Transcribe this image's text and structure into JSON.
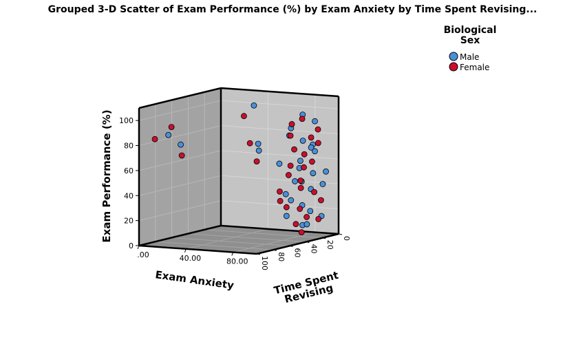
{
  "chart_data": {
    "type": "scatter3d",
    "title": "Grouped 3-D Scatter of Exam Performance (%) by Exam Anxiety by Time Spent Revising...",
    "x_label": "Exam Anxiety",
    "y_label": "Exam Performance (%)",
    "z_label": [
      "Time Spent",
      "Revising"
    ],
    "legend_title": [
      "Biological",
      "Sex"
    ],
    "xlim": [
      0,
      100
    ],
    "xticks": [
      {
        "value": 0,
        "label": ".00"
      },
      {
        "value": 40,
        "label": "40.00"
      },
      {
        "value": 80,
        "label": "80.00"
      }
    ],
    "ylim": [
      0,
      110
    ],
    "yticks": [
      0,
      20,
      40,
      60,
      80,
      100
    ],
    "zlim": [
      0,
      100
    ],
    "zticks": [
      0,
      20,
      40,
      60,
      80,
      100
    ],
    "grid": true,
    "series": [
      {
        "name": "Male",
        "color": "#4a90d9",
        "x": [
          18,
          25,
          35,
          40,
          42,
          70,
          72,
          75,
          78,
          80,
          82,
          84,
          85,
          86,
          88,
          90,
          76,
          79,
          83,
          87,
          91,
          74,
          81,
          85,
          89,
          92,
          78,
          86,
          80,
          84
        ],
        "z": [
          90,
          85,
          10,
          12,
          14,
          15,
          20,
          8,
          12,
          18,
          22,
          6,
          10,
          25,
          14,
          5,
          30,
          28,
          20,
          16,
          8,
          35,
          26,
          12,
          18,
          4,
          32,
          24,
          10,
          6
        ],
        "values": [
          88,
          80,
          100,
          70,
          65,
          85,
          80,
          95,
          75,
          60,
          55,
          90,
          72,
          45,
          50,
          40,
          35,
          30,
          25,
          20,
          15,
          60,
          45,
          70,
          38,
          50,
          18,
          10,
          8,
          66
        ]
      },
      {
        "name": "Female",
        "color": "#c8102e",
        "x": [
          10,
          22,
          28,
          30,
          33,
          36,
          70,
          73,
          76,
          79,
          82,
          85,
          88,
          90,
          77,
          80,
          83,
          86,
          89,
          92,
          74,
          78,
          81,
          84,
          87,
          75,
          79,
          83,
          88,
          91
        ],
        "z": [
          95,
          92,
          88,
          15,
          12,
          8,
          14,
          20,
          10,
          24,
          16,
          12,
          8,
          18,
          28,
          30,
          22,
          26,
          14,
          10,
          34,
          32,
          20,
          16,
          6,
          36,
          22,
          18,
          28,
          12
        ],
        "values": [
          85,
          95,
          72,
          92,
          70,
          55,
          88,
          80,
          92,
          70,
          65,
          78,
          84,
          60,
          50,
          58,
          45,
          40,
          35,
          28,
          30,
          25,
          22,
          15,
          12,
          38,
          10,
          55,
          5,
          74
        ]
      }
    ]
  }
}
